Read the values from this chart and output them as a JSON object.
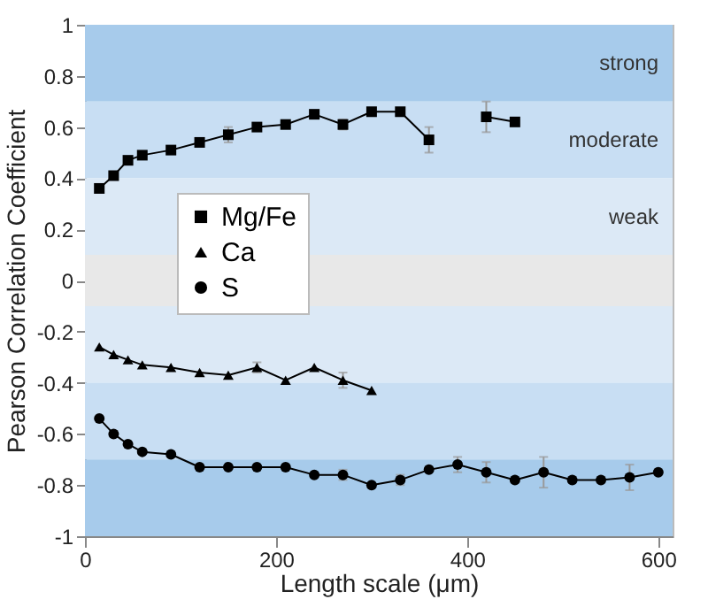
{
  "chart_data": {
    "type": "line",
    "xlabel": "Length scale (μm)",
    "ylabel": "Pearson Correlation Coefficient",
    "xlim": [
      0,
      615
    ],
    "xticks": [
      0,
      200,
      400,
      600
    ],
    "ylim": [
      -1,
      1
    ],
    "yticks": [
      -1,
      -0.8,
      -0.6,
      -0.4,
      -0.2,
      0,
      0.2,
      0.4,
      0.6,
      0.8,
      1
    ],
    "legend": "left",
    "bands": [
      {
        "axis": "y",
        "from": 0.7,
        "to": 1,
        "label": "strong",
        "color": "#a7cbeb"
      },
      {
        "axis": "y",
        "from": 0.4,
        "to": 0.7,
        "label": "moderate",
        "color": "#c8def3"
      },
      {
        "axis": "y",
        "from": 0.1,
        "to": 0.4,
        "label": "weak",
        "color": "#dce9f6"
      },
      {
        "axis": "y",
        "from": -0.1,
        "to": 0.1,
        "color": "#e8e8e8"
      },
      {
        "axis": "y",
        "from": -0.4,
        "to": -0.1,
        "color": "#dce9f6"
      },
      {
        "axis": "y",
        "from": -0.7,
        "to": -0.4,
        "color": "#c8def3"
      },
      {
        "axis": "y",
        "from": -1,
        "to": -0.7,
        "color": "#a7cbeb"
      }
    ],
    "series": [
      {
        "name": "Mg/Fe",
        "color": "#000000",
        "marker": "square",
        "x": [
          15,
          30,
          45,
          60,
          90,
          120,
          150,
          180,
          210,
          240,
          270,
          300,
          330,
          360,
          390,
          420,
          450
        ],
        "values": [
          0.36,
          0.41,
          0.47,
          0.49,
          0.51,
          0.54,
          0.57,
          0.6,
          0.61,
          0.65,
          0.61,
          0.66,
          0.66,
          0.55,
          null,
          0.64,
          0.62
        ],
        "errors": [
          null,
          null,
          null,
          null,
          null,
          null,
          0.03,
          null,
          null,
          null,
          0.02,
          null,
          null,
          0.05,
          null,
          0.06,
          null
        ]
      },
      {
        "name": "Ca",
        "color": "#000000",
        "marker": "triangle",
        "x": [
          15,
          30,
          45,
          60,
          90,
          120,
          150,
          180,
          210,
          240,
          270,
          300
        ],
        "values": [
          -0.26,
          -0.29,
          -0.31,
          -0.33,
          -0.34,
          -0.36,
          -0.37,
          -0.34,
          -0.39,
          -0.34,
          -0.39,
          -0.43
        ],
        "errors": [
          null,
          null,
          null,
          null,
          null,
          null,
          null,
          0.02,
          null,
          null,
          0.03,
          null
        ]
      },
      {
        "name": "S",
        "color": "#000000",
        "marker": "circle",
        "x": [
          15,
          30,
          45,
          60,
          90,
          120,
          150,
          180,
          210,
          240,
          270,
          300,
          330,
          360,
          390,
          420,
          450,
          480,
          510,
          540,
          570,
          600
        ],
        "values": [
          -0.54,
          -0.6,
          -0.64,
          -0.67,
          -0.68,
          -0.73,
          -0.73,
          -0.73,
          -0.73,
          -0.76,
          -0.76,
          -0.8,
          -0.78,
          -0.74,
          -0.72,
          -0.75,
          -0.78,
          -0.75,
          -0.78,
          -0.78,
          -0.77,
          -0.75
        ],
        "errors": [
          null,
          null,
          null,
          null,
          null,
          null,
          null,
          null,
          null,
          null,
          0.02,
          null,
          0.02,
          null,
          0.03,
          0.04,
          null,
          0.06,
          null,
          null,
          0.05,
          null
        ]
      }
    ]
  }
}
